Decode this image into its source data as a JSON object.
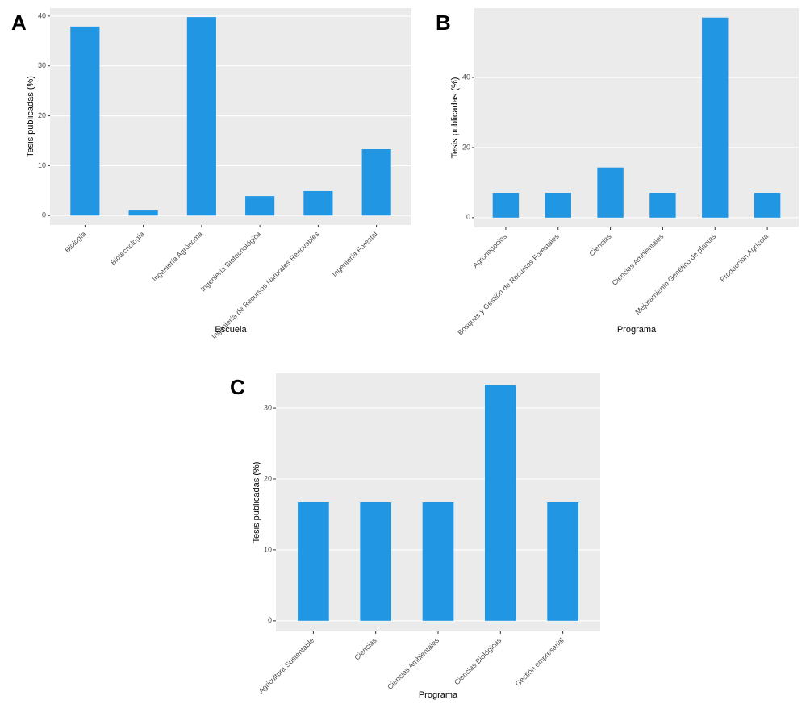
{
  "chart_data": [
    {
      "type": "bar",
      "panel_label": "A",
      "x_label": "Escuela",
      "y_label": "Tesis publicadas (%)",
      "categories": [
        "Biología",
        "Biotecnología",
        "Ingeniería Agrónoma",
        "Ingeniería Biotecnológica",
        "Ingeniería de Recursos Naturales Renovables",
        "Ingeniería Forestal"
      ],
      "values": [
        37.9,
        1.0,
        39.8,
        3.9,
        4.9,
        13.3
      ],
      "color": "#2196e3",
      "ylim": [
        -1.9,
        41.6
      ],
      "yticks": [
        0,
        10,
        20,
        30,
        40
      ],
      "grid": true
    },
    {
      "type": "bar",
      "panel_label": "B",
      "x_label": "Programa",
      "y_label": "Tesis publicadas (%)",
      "categories": [
        "Agronegocios",
        "Bosques y Gestión de Recursos Forestales",
        "Ciencias",
        "Ciencias Ambientales",
        "Mejoramiento Genético de plantas",
        "Producción Agrícola"
      ],
      "values": [
        7.1,
        7.1,
        14.3,
        7.1,
        57.1,
        7.1
      ],
      "color": "#2196e3",
      "ylim": [
        -2.8,
        59.8
      ],
      "yticks": [
        0,
        20,
        40
      ],
      "grid": true
    },
    {
      "type": "bar",
      "panel_label": "C",
      "x_label": "Programa",
      "y_label": "Tesis publicadas (%)",
      "categories": [
        "Agricultura Sustentable",
        "Ciencias",
        "Ciencias Ambientales",
        "Ciencias Biológicas",
        "Gestión empresarial"
      ],
      "values": [
        16.7,
        16.7,
        16.7,
        33.3,
        16.7
      ],
      "color": "#2196e3",
      "ylim": [
        -1.5,
        34.9
      ],
      "yticks": [
        0,
        10,
        20,
        30
      ],
      "grid": true
    }
  ]
}
